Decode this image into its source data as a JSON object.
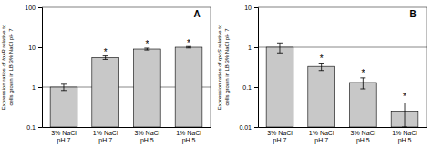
{
  "chart_data": [
    {
      "type": "bar",
      "panel_label": "A",
      "ylabel": "Expression ratios of toxR relative to\ncells grown in LB 3% NaCl pH 7",
      "ylabel_italic": "toxR",
      "categories": [
        "3% NaCl\npH 7",
        "1% NaCl\npH 7",
        "3% NaCl\npH 5",
        "1% NaCl\npH 5"
      ],
      "values": [
        1.0,
        5.5,
        9.0,
        10.0
      ],
      "errors_up": [
        0.18,
        0.55,
        0.5,
        0.4
      ],
      "errors_down": [
        0.18,
        0.55,
        0.5,
        0.4
      ],
      "annotations": [
        null,
        "*",
        "*",
        "*"
      ],
      "hline": 1.0,
      "color": "#c8c8c8",
      "log": "y",
      "ylim": [
        0.1,
        100
      ],
      "yticks": [
        0.1,
        1,
        10,
        100
      ],
      "grid": false
    },
    {
      "type": "bar",
      "panel_label": "B",
      "ylabel": "Expression ratios of rpoS relative to\ncells grown in LB 3% NaCl pH 7",
      "ylabel_italic": "rpoS",
      "categories": [
        "3% NaCl\npH 7",
        "1% NaCl\npH 7",
        "3% NaCl\npH 5",
        "1% NaCl\npH 5"
      ],
      "values": [
        1.0,
        0.33,
        0.13,
        0.025
      ],
      "errors_up": [
        0.28,
        0.07,
        0.04,
        0.015
      ],
      "errors_down": [
        0.28,
        0.07,
        0.04,
        0.015
      ],
      "annotations": [
        null,
        "*",
        "*",
        "*"
      ],
      "hline": 1.0,
      "color": "#c8c8c8",
      "log": "y",
      "ylim": [
        0.01,
        10
      ],
      "yticks": [
        0.01,
        0.1,
        1,
        10
      ],
      "grid": false
    }
  ]
}
